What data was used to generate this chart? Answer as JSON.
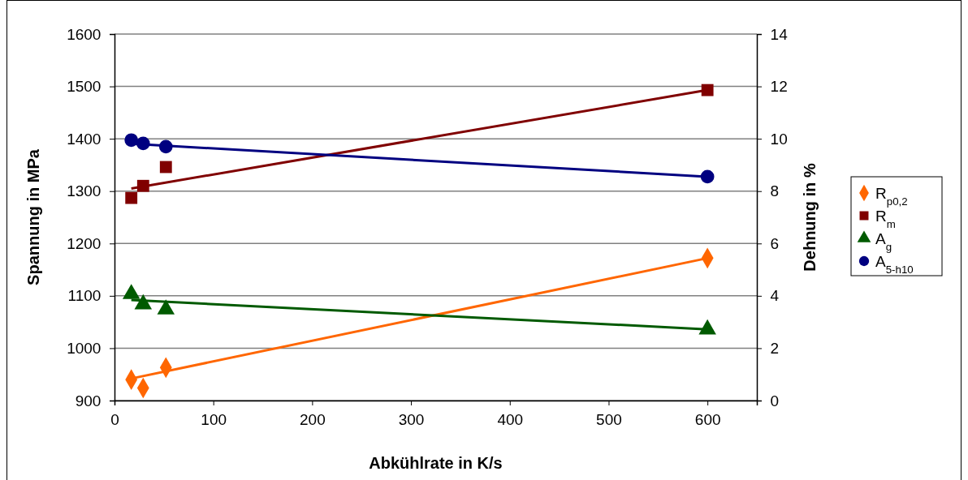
{
  "chart_data": {
    "type": "scatter",
    "xlabel": "Abkühlrate in K/s",
    "ylabel": "Spannung in MPa",
    "y2label": "Dehnung in %",
    "xlim": [
      0,
      650
    ],
    "xticks": [
      0,
      100,
      200,
      300,
      400,
      500,
      600
    ],
    "ylim": [
      900,
      1600
    ],
    "yticks": [
      900,
      1000,
      1100,
      1200,
      1300,
      1400,
      1500,
      1600
    ],
    "y2lim": [
      0,
      14
    ],
    "y2ticks": [
      0,
      2,
      4,
      6,
      8,
      10,
      12,
      14
    ],
    "grid": "y",
    "legend": "right",
    "series": [
      {
        "name": "R$_{p0,2}$",
        "color": "#ff6600",
        "marker": "diamond",
        "x": [
          17,
          29,
          52,
          600
        ],
        "values": [
          940,
          924,
          963,
          1172
        ]
      },
      {
        "name": "R$_{m}$",
        "color": "#800000",
        "marker": "square",
        "x": [
          17,
          29,
          52,
          600
        ],
        "values": [
          1287,
          1310,
          1346,
          1493
        ]
      },
      {
        "name": "A$_{g}$",
        "color": "#005a00",
        "marker": "triangle",
        "axis": "y2",
        "x": [
          17,
          29,
          52,
          600
        ],
        "values": [
          4.07,
          3.68,
          3.48,
          2.72
        ]
      },
      {
        "name": "A$_{5-h10}$",
        "color": "#000080",
        "marker": "circle",
        "axis": "y2",
        "x": [
          17,
          29,
          52,
          600
        ],
        "values": [
          9.95,
          9.82,
          9.7,
          8.55
        ]
      },
      {
        "type": "line",
        "color": "#ff6600",
        "marker": "none",
        "x": [
          17,
          600
        ],
        "values": [
          942,
          1172
        ]
      },
      {
        "type": "line",
        "color": "#800000",
        "marker": "none",
        "x": [
          17,
          600
        ],
        "values": [
          1305,
          1493
        ]
      },
      {
        "type": "line",
        "color": "#005a00",
        "marker": "none",
        "axis": "y2",
        "x": [
          17,
          600
        ],
        "values": [
          3.84,
          2.72
        ]
      },
      {
        "type": "line",
        "color": "#000080",
        "marker": "none",
        "axis": "y2",
        "x": [
          17,
          600
        ],
        "values": [
          9.81,
          8.55
        ]
      }
    ]
  }
}
